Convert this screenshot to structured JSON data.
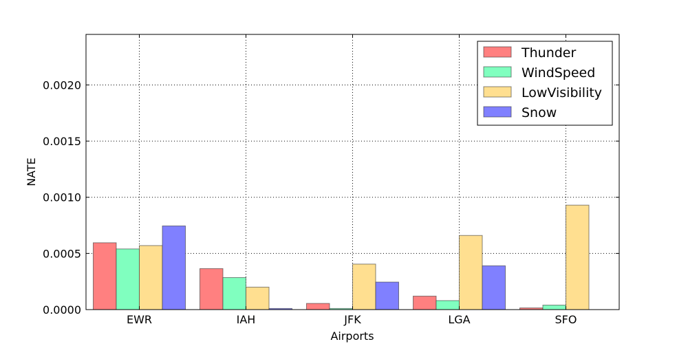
{
  "chart_data": {
    "type": "bar",
    "xlabel": "Airports",
    "ylabel": "NATE",
    "categories": [
      "EWR",
      "IAH",
      "JFK",
      "LGA",
      "SFO"
    ],
    "ylim": [
      0,
      0.00245
    ],
    "yticks": [
      "0.0000",
      "0.0005",
      "0.0010",
      "0.0015",
      "0.0020"
    ],
    "ytick_values": [
      0,
      0.0005,
      0.001,
      0.0015,
      0.002
    ],
    "grid": true,
    "legend_position": "top-right",
    "series": [
      {
        "name": "Thunder",
        "color": "#ff8080",
        "values": [
          0.000595,
          0.000365,
          5.5e-05,
          0.00012,
          1.5e-05
        ]
      },
      {
        "name": "WindSpeed",
        "color": "#80ffbf",
        "values": [
          0.00054,
          0.000285,
          1e-05,
          8e-05,
          4e-05
        ]
      },
      {
        "name": "LowVisibility",
        "color": "#ffdf90",
        "values": [
          0.00057,
          0.0002,
          0.000405,
          0.00066,
          0.00093
        ]
      },
      {
        "name": "Snow",
        "color": "#8080ff",
        "values": [
          0.000745,
          1e-05,
          0.000245,
          0.00039,
          0.0
        ]
      }
    ]
  }
}
